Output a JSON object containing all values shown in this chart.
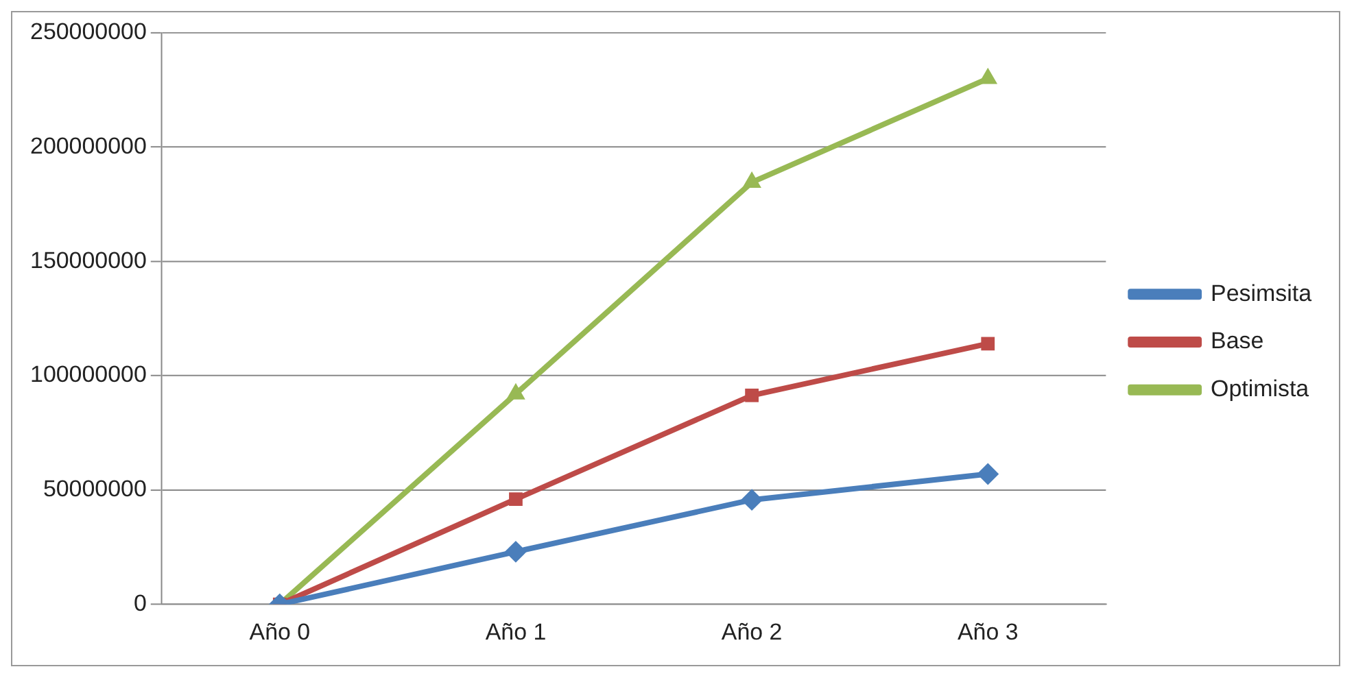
{
  "chart_data": {
    "type": "line",
    "categories": [
      "Año 0",
      "Año 1",
      "Año 2",
      "Año 3"
    ],
    "series": [
      {
        "name": "Pesimsita",
        "color": "#4a7ebb",
        "marker": "diamond",
        "values": [
          0,
          23000000,
          45700000,
          57000000
        ]
      },
      {
        "name": "Base",
        "color": "#be4b48",
        "marker": "square",
        "values": [
          0,
          46000000,
          91400000,
          114000000
        ]
      },
      {
        "name": "Optimista",
        "color": "#98b954",
        "marker": "triangle",
        "values": [
          0,
          92000000,
          184600000,
          230000000
        ]
      }
    ],
    "ylim": [
      0,
      250000000
    ],
    "yticks": [
      0,
      50000000,
      100000000,
      150000000,
      200000000,
      250000000
    ],
    "grid": "y",
    "legend": "right",
    "line_style": "solid"
  }
}
